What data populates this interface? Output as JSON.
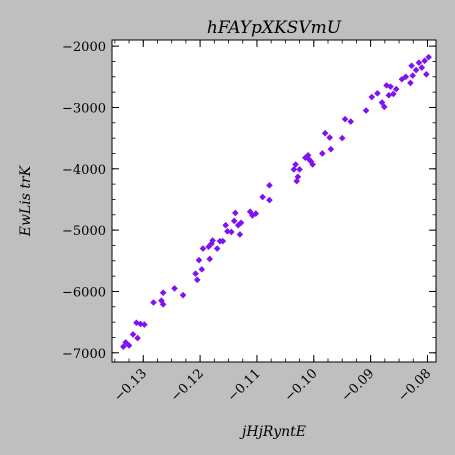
{
  "chart_data": {
    "type": "scatter",
    "title": "hFAYpXKSVmU",
    "xlabel": "jHjRyntE",
    "ylabel": "EwLis trK",
    "xlim": [
      -0.1355,
      -0.0785
    ],
    "ylim": [
      -7150,
      -1900
    ],
    "xticks": [
      -0.13,
      -0.12,
      -0.11,
      -0.1,
      -0.09,
      -0.08
    ],
    "xtick_labels": [
      "−0.13",
      "−0.12",
      "−0.11",
      "−0.10",
      "−0.09",
      "−0.08"
    ],
    "yticks": [
      -7000,
      -6000,
      -5000,
      -4000,
      -3000,
      -2000
    ],
    "ytick_labels": [
      "−7000",
      "−6000",
      "−5000",
      "−4000",
      "−3000",
      "−2000"
    ],
    "grid": false,
    "marker_color": "#7f12f2",
    "points": [
      {
        "x": -0.1335,
        "y": -6900
      },
      {
        "x": -0.1331,
        "y": -6830
      },
      {
        "x": -0.1325,
        "y": -6880
      },
      {
        "x": -0.1318,
        "y": -6700
      },
      {
        "x": -0.1312,
        "y": -6510
      },
      {
        "x": -0.1305,
        "y": -6530
      },
      {
        "x": -0.131,
        "y": -6760
      },
      {
        "x": -0.1298,
        "y": -6540
      },
      {
        "x": -0.1282,
        "y": -6180
      },
      {
        "x": -0.1268,
        "y": -6150
      },
      {
        "x": -0.1265,
        "y": -6020
      },
      {
        "x": -0.1265,
        "y": -6210
      },
      {
        "x": -0.1245,
        "y": -5950
      },
      {
        "x": -0.123,
        "y": -6060
      },
      {
        "x": -0.1208,
        "y": -5710
      },
      {
        "x": -0.1205,
        "y": -5810
      },
      {
        "x": -0.1202,
        "y": -5490
      },
      {
        "x": -0.1197,
        "y": -5640
      },
      {
        "x": -0.1195,
        "y": -5300
      },
      {
        "x": -0.1185,
        "y": -5270
      },
      {
        "x": -0.1183,
        "y": -5470
      },
      {
        "x": -0.1178,
        "y": -5170
      },
      {
        "x": -0.118,
        "y": -5220
      },
      {
        "x": -0.117,
        "y": -5300
      },
      {
        "x": -0.1165,
        "y": -5180
      },
      {
        "x": -0.116,
        "y": -5180
      },
      {
        "x": -0.1155,
        "y": -4920
      },
      {
        "x": -0.1152,
        "y": -5020
      },
      {
        "x": -0.1145,
        "y": -5030
      },
      {
        "x": -0.114,
        "y": -4850
      },
      {
        "x": -0.1138,
        "y": -4720
      },
      {
        "x": -0.1133,
        "y": -4920
      },
      {
        "x": -0.113,
        "y": -5070
      },
      {
        "x": -0.1128,
        "y": -4880
      },
      {
        "x": -0.1112,
        "y": -4700
      },
      {
        "x": -0.1108,
        "y": -4760
      },
      {
        "x": -0.1102,
        "y": -4730
      },
      {
        "x": -0.109,
        "y": -4460
      },
      {
        "x": -0.1078,
        "y": -4510
      },
      {
        "x": -0.1078,
        "y": -4270
      },
      {
        "x": -0.1035,
        "y": -4010
      },
      {
        "x": -0.1032,
        "y": -3930
      },
      {
        "x": -0.103,
        "y": -4200
      },
      {
        "x": -0.1028,
        "y": -4130
      },
      {
        "x": -0.1025,
        "y": -4010
      },
      {
        "x": -0.1015,
        "y": -3820
      },
      {
        "x": -0.101,
        "y": -3780
      },
      {
        "x": -0.1008,
        "y": -3850
      },
      {
        "x": -0.1005,
        "y": -3880
      },
      {
        "x": -0.1002,
        "y": -3930
      },
      {
        "x": -0.0985,
        "y": -3750
      },
      {
        "x": -0.098,
        "y": -3420
      },
      {
        "x": -0.0972,
        "y": -3490
      },
      {
        "x": -0.097,
        "y": -3680
      },
      {
        "x": -0.095,
        "y": -3500
      },
      {
        "x": -0.0945,
        "y": -3190
      },
      {
        "x": -0.0935,
        "y": -3230
      },
      {
        "x": -0.0908,
        "y": -3050
      },
      {
        "x": -0.0898,
        "y": -2830
      },
      {
        "x": -0.0888,
        "y": -2770
      },
      {
        "x": -0.088,
        "y": -2920
      },
      {
        "x": -0.0876,
        "y": -2990
      },
      {
        "x": -0.0872,
        "y": -2640
      },
      {
        "x": -0.0868,
        "y": -2800
      },
      {
        "x": -0.0865,
        "y": -2660
      },
      {
        "x": -0.086,
        "y": -2780
      },
      {
        "x": -0.0855,
        "y": -2700
      },
      {
        "x": -0.0845,
        "y": -2540
      },
      {
        "x": -0.0838,
        "y": -2500
      },
      {
        "x": -0.083,
        "y": -2600
      },
      {
        "x": -0.0828,
        "y": -2320
      },
      {
        "x": -0.0826,
        "y": -2480
      },
      {
        "x": -0.082,
        "y": -2390
      },
      {
        "x": -0.0815,
        "y": -2270
      },
      {
        "x": -0.081,
        "y": -2350
      },
      {
        "x": -0.0805,
        "y": -2240
      },
      {
        "x": -0.0802,
        "y": -2460
      },
      {
        "x": -0.0798,
        "y": -2180
      }
    ]
  }
}
